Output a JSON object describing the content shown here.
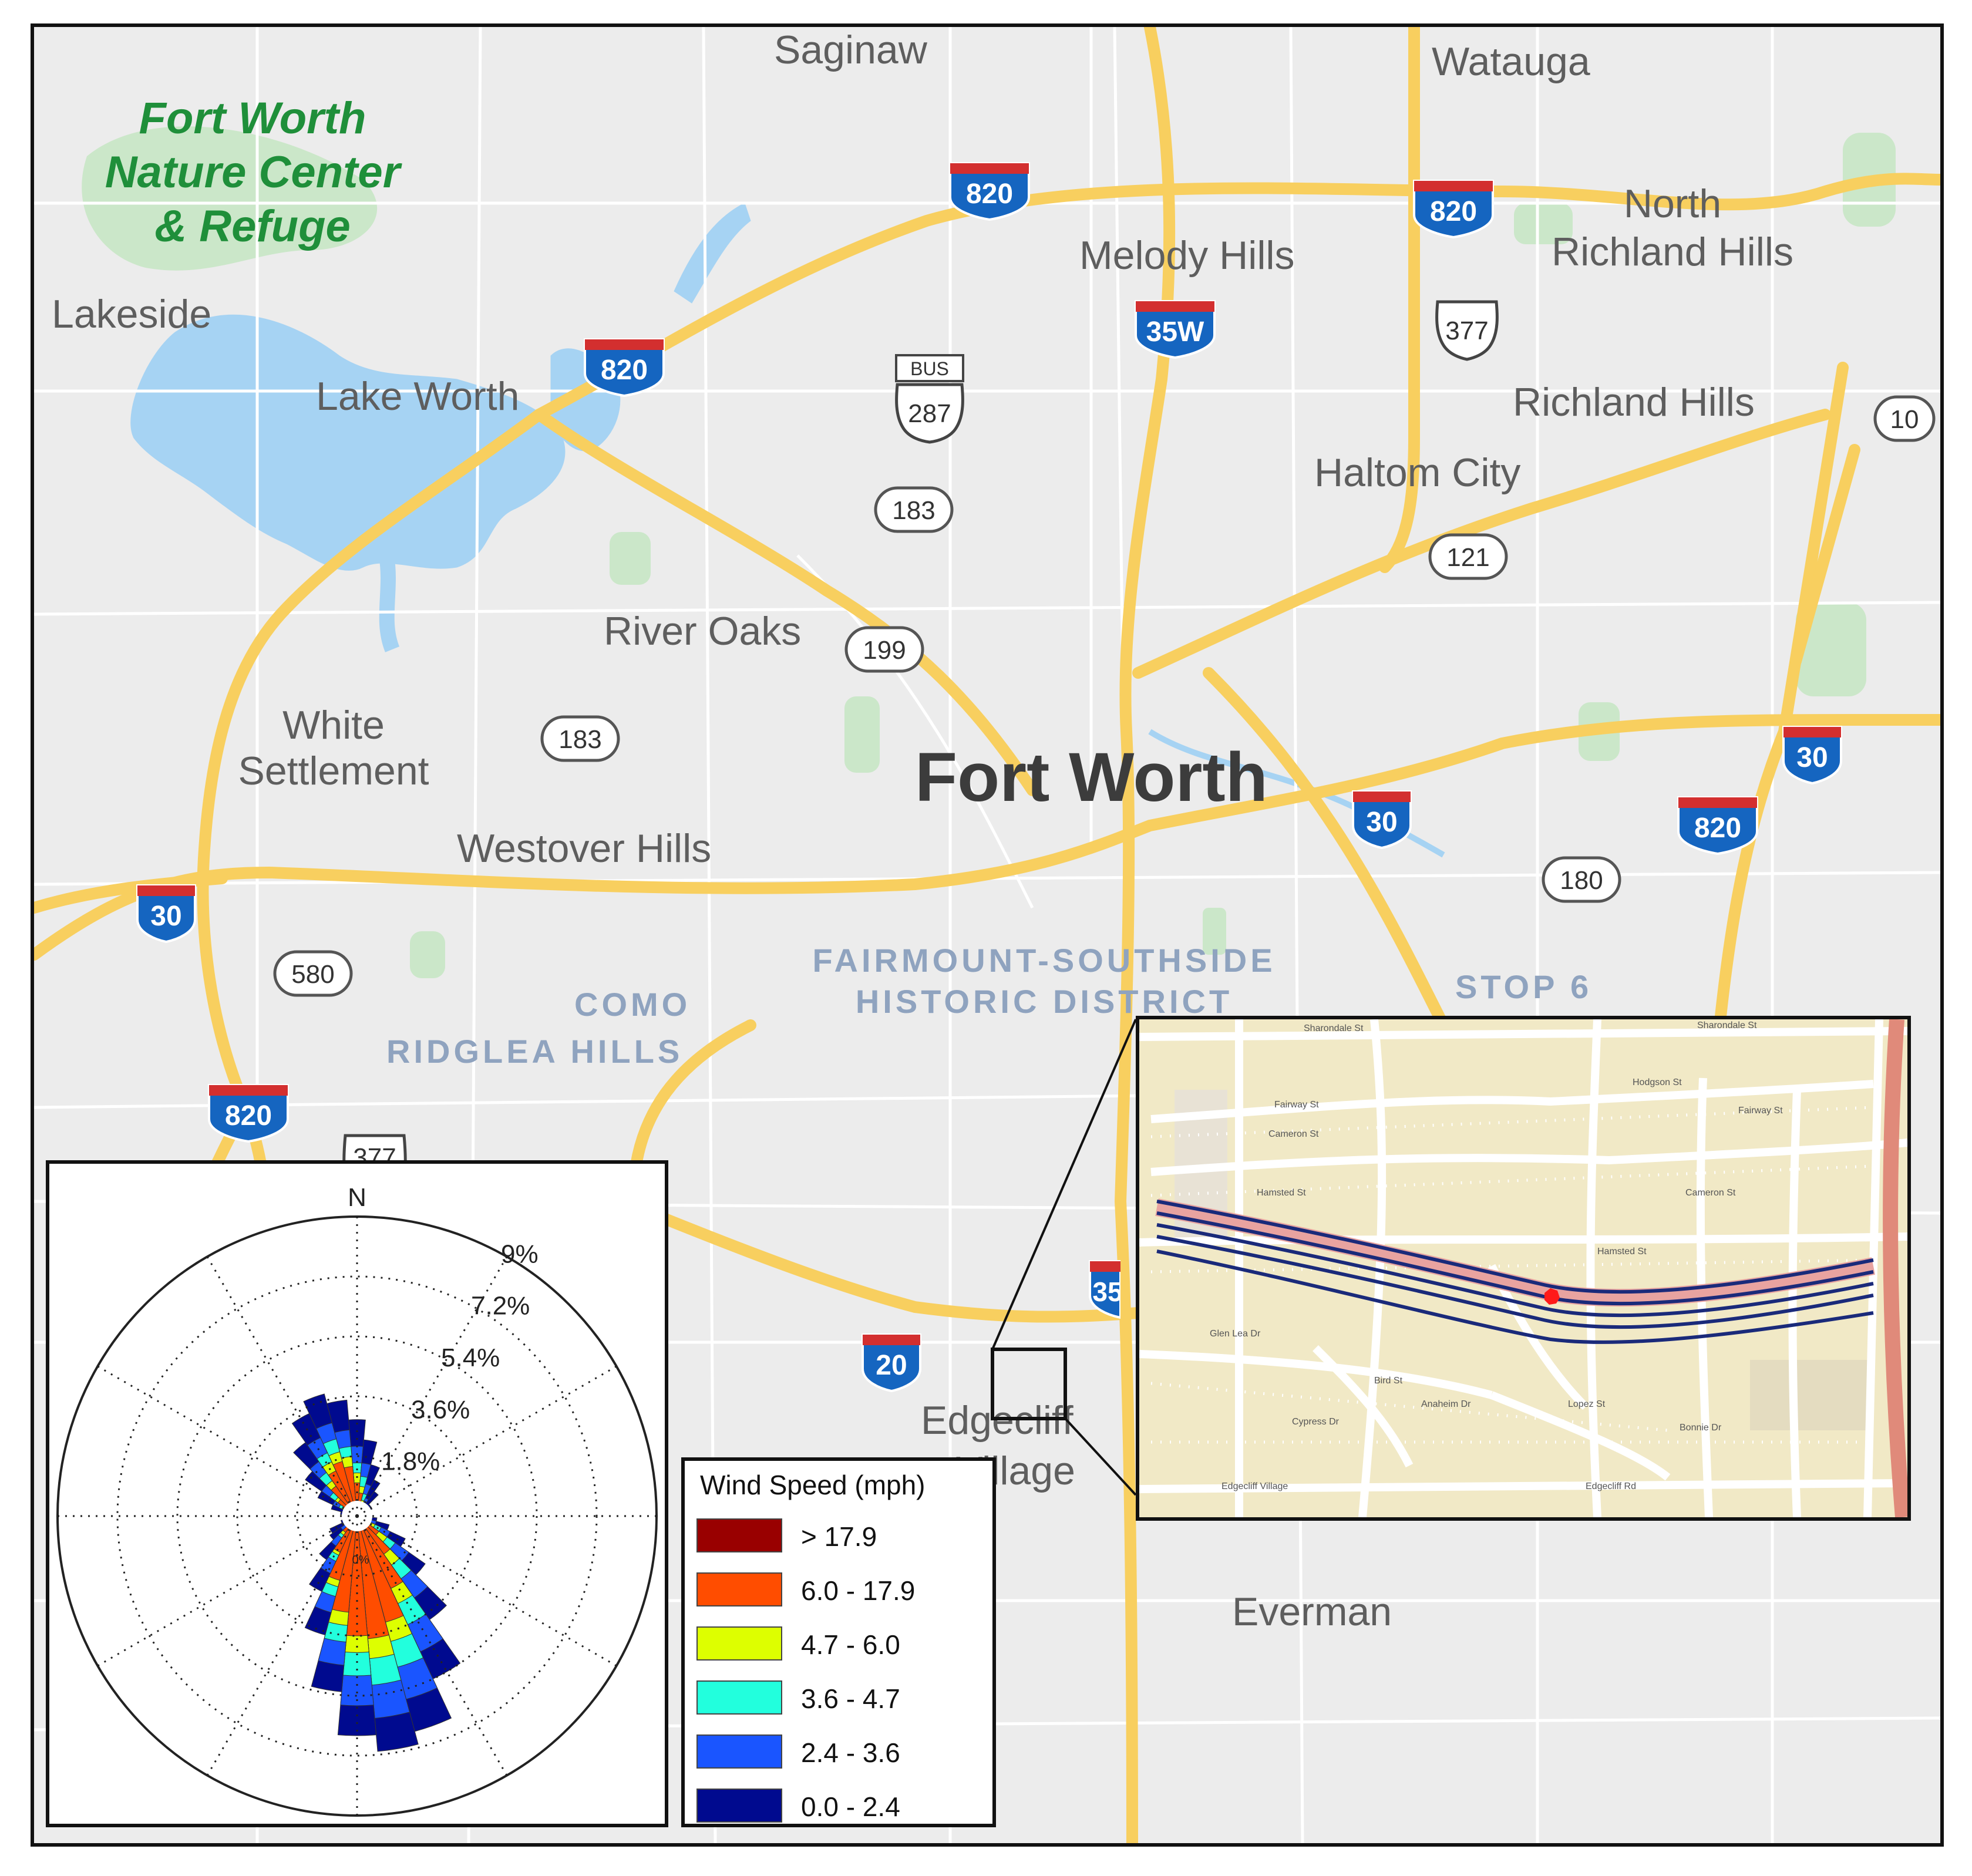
{
  "places": {
    "saginaw": "Saginaw",
    "watauga": "Watauga",
    "nature_center": [
      "Fort Worth",
      "Nature Center",
      "& Refuge"
    ],
    "lakeside": "Lakeside",
    "lake_worth": "Lake Worth",
    "melody_hills": "Melody Hills",
    "north_richland_hills": [
      "North",
      "Richland Hills"
    ],
    "richland_hills": "Richland Hills",
    "haltom_city": "Haltom City",
    "river_oaks": "River Oaks",
    "white_settlement": [
      "White",
      "Settlement"
    ],
    "fort_worth": "Fort Worth",
    "westover_hills": "Westover Hills",
    "fairmount": [
      "FAIRMOUNT-SOUTHSIDE",
      "HISTORIC DISTRICT"
    ],
    "como": "COMO",
    "ridglea_hills": "RIDGLEA HILLS",
    "stop6": "STOP 6",
    "edgecliff": [
      "Edgecliff",
      "Village"
    ],
    "everman": "Everman"
  },
  "shields": {
    "i820_a": "820",
    "i820_b": "820",
    "i820_c": "820",
    "i820_d": "820",
    "i820_e": "820",
    "i35w": "35W",
    "i35_partial": "35",
    "i30_a": "30",
    "i30_b": "30",
    "i30_c": "30",
    "i20": "20",
    "us377": "377",
    "us377_partial": "377",
    "bus287_tag": "BUS",
    "bus287": "287",
    "tx183_a": "183",
    "tx183_b": "183",
    "tx199": "199",
    "tx121": "121",
    "tx180": "180",
    "tx580": "580",
    "tx10": "10"
  },
  "street_inset": {
    "streets": [
      "Sharondale St",
      "Sharondale St",
      "Hodgson St",
      "Fairway St",
      "Fairway St",
      "Cameron St",
      "Cameron St",
      "Hamsted St",
      "Hamsted St",
      "Glen Lea Dr",
      "Cypress Dr",
      "Anaheim Dr",
      "Bird St",
      "Lopez St",
      "Bonnie Dr",
      "Edgecliff Rd",
      "Edgecliff Village"
    ],
    "marker_color": "#ff1a1a",
    "road_color": "#1a2a7a"
  },
  "legend": {
    "title": "Wind Speed (mph)",
    "bins": [
      {
        "label": "> 17.9",
        "color": "#990000"
      },
      {
        "label": "6.0 - 17.9",
        "color": "#ff4d00"
      },
      {
        "label": "4.7 - 6.0",
        "color": "#ddff00"
      },
      {
        "label": "3.6 - 4.7",
        "color": "#22ffdd"
      },
      {
        "label": "2.4 - 3.6",
        "color": "#1a55ff"
      },
      {
        "label": "0.0 - 2.4",
        "color": "#000a8f"
      }
    ]
  },
  "chart_data": {
    "type": "wind-rose",
    "title": "",
    "north_label": "N",
    "rings": [
      "1.8%",
      "3.6%",
      "5.4%",
      "7.2%",
      "9%"
    ],
    "ring_values": [
      1.8,
      3.6,
      5.4,
      7.2,
      9
    ],
    "max_percent": 9,
    "center_label": "0%",
    "sector_count": 36,
    "directions_deg": [
      0,
      10,
      20,
      30,
      40,
      50,
      60,
      70,
      80,
      90,
      100,
      110,
      120,
      130,
      140,
      150,
      160,
      170,
      180,
      190,
      200,
      210,
      220,
      230,
      240,
      250,
      260,
      270,
      280,
      290,
      300,
      310,
      320,
      330,
      340,
      350
    ],
    "series": [
      {
        "name": "0.0 - 2.4",
        "values": [
          0.8,
          0.7,
          0.6,
          0.6,
          0.5,
          0.4,
          0.4,
          0.3,
          0.3,
          0.3,
          0.3,
          0.4,
          0.5,
          0.6,
          0.8,
          0.9,
          1.0,
          1.0,
          0.9,
          0.8,
          0.7,
          0.6,
          0.5,
          0.4,
          0.4,
          0.3,
          0.3,
          0.3,
          0.3,
          0.4,
          0.5,
          0.6,
          0.7,
          0.8,
          0.9,
          0.9
        ]
      },
      {
        "name": "2.4 - 3.6",
        "values": [
          0.5,
          0.4,
          0.3,
          0.2,
          0.2,
          0.1,
          0.1,
          0.1,
          0.1,
          0.1,
          0.1,
          0.2,
          0.3,
          0.5,
          0.7,
          0.9,
          1.0,
          1.0,
          0.9,
          0.7,
          0.5,
          0.4,
          0.3,
          0.2,
          0.2,
          0.1,
          0.1,
          0.1,
          0.1,
          0.1,
          0.2,
          0.3,
          0.4,
          0.5,
          0.5,
          0.5
        ]
      },
      {
        "name": "3.6 - 4.7",
        "values": [
          0.3,
          0.3,
          0.2,
          0.1,
          0.1,
          0.0,
          0.0,
          0.0,
          0.0,
          0.0,
          0.1,
          0.1,
          0.2,
          0.3,
          0.5,
          0.7,
          0.8,
          0.8,
          0.7,
          0.5,
          0.3,
          0.2,
          0.1,
          0.1,
          0.1,
          0.0,
          0.0,
          0.0,
          0.0,
          0.1,
          0.1,
          0.2,
          0.3,
          0.3,
          0.4,
          0.3
        ]
      },
      {
        "name": "4.7 - 6.0",
        "values": [
          0.3,
          0.2,
          0.1,
          0.1,
          0.0,
          0.0,
          0.0,
          0.0,
          0.0,
          0.0,
          0.0,
          0.1,
          0.2,
          0.3,
          0.4,
          0.5,
          0.6,
          0.6,
          0.5,
          0.4,
          0.2,
          0.1,
          0.1,
          0.0,
          0.0,
          0.0,
          0.0,
          0.0,
          0.0,
          0.0,
          0.1,
          0.1,
          0.2,
          0.3,
          0.3,
          0.3
        ]
      },
      {
        "name": "6.0 - 17.9",
        "values": [
          1.0,
          0.7,
          0.4,
          0.2,
          0.1,
          0.0,
          0.0,
          0.0,
          0.0,
          0.0,
          0.1,
          0.2,
          0.4,
          0.8,
          1.4,
          2.4,
          3.3,
          3.7,
          3.6,
          2.9,
          2.0,
          1.2,
          0.6,
          0.3,
          0.2,
          0.1,
          0.0,
          0.0,
          0.1,
          0.2,
          0.4,
          0.7,
          1.1,
          1.5,
          1.7,
          1.5
        ]
      },
      {
        "name": "> 17.9",
        "values": [
          0,
          0,
          0,
          0,
          0,
          0,
          0,
          0,
          0,
          0,
          0,
          0,
          0,
          0,
          0,
          0,
          0,
          0,
          0,
          0,
          0,
          0,
          0,
          0,
          0,
          0,
          0,
          0,
          0,
          0,
          0,
          0,
          0,
          0,
          0,
          0
        ]
      }
    ]
  }
}
